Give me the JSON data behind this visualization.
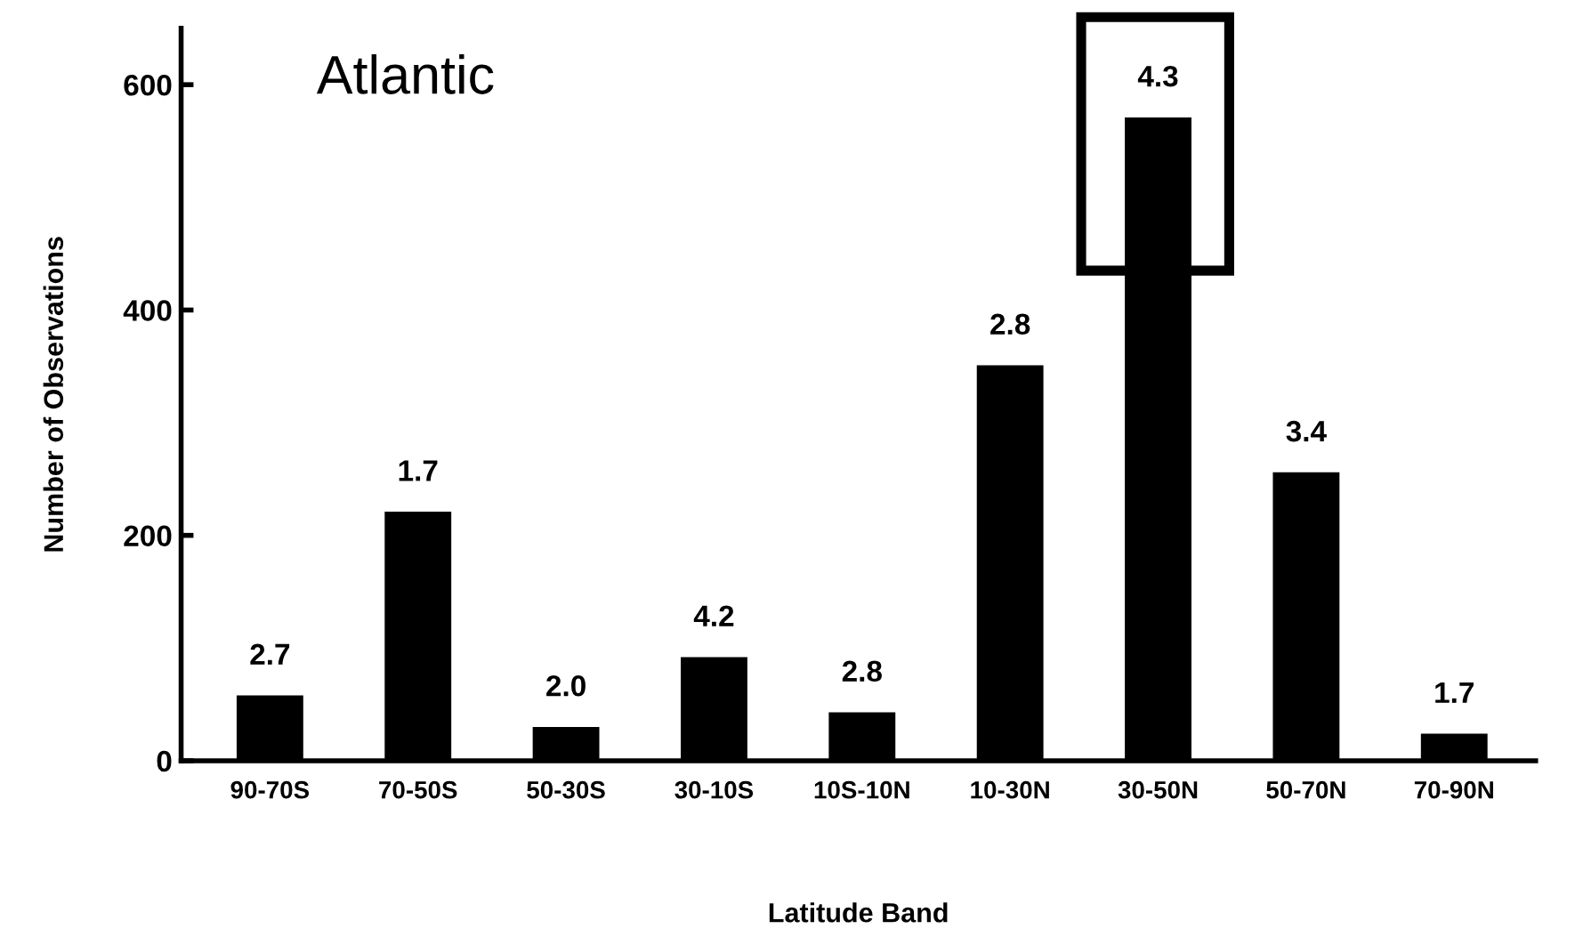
{
  "chart_data": {
    "type": "bar",
    "xlabel": "Latitude Band",
    "ylabel": "Number of Observations",
    "categories": [
      "90-70S",
      "70-50S",
      "50-30S",
      "30-10S",
      "10S-10N",
      "10-30N",
      "30-50N",
      "50-70N",
      "70-90N"
    ],
    "values": [
      58,
      221,
      30,
      92,
      43,
      351,
      571,
      256,
      24
    ],
    "color": "#000000",
    "ylim": [
      0,
      650
    ],
    "yticks": [
      0,
      200,
      400,
      600
    ],
    "annotations": [
      "Atlantic",
      {
        "text": "2.7",
        "x": "90-70S",
        "y": 58
      },
      {
        "text": "1.7",
        "x": "70-50S",
        "y": 221
      },
      {
        "text": "2.0",
        "x": "50-30S",
        "y": 30
      },
      {
        "text": "4.2",
        "x": "30-10S",
        "y": 92
      },
      {
        "text": "2.8",
        "x": "10S-10N",
        "y": 43
      },
      {
        "text": "2.8",
        "x": "10-30N",
        "y": 351
      },
      {
        "text": "4.3",
        "x": "30-50N",
        "y": 571
      },
      {
        "text": "3.4",
        "x": "50-70N",
        "y": 256
      },
      {
        "text": "1.7",
        "x": "70-90N",
        "y": 24
      }
    ],
    "grid": false,
    "legend": false
  }
}
